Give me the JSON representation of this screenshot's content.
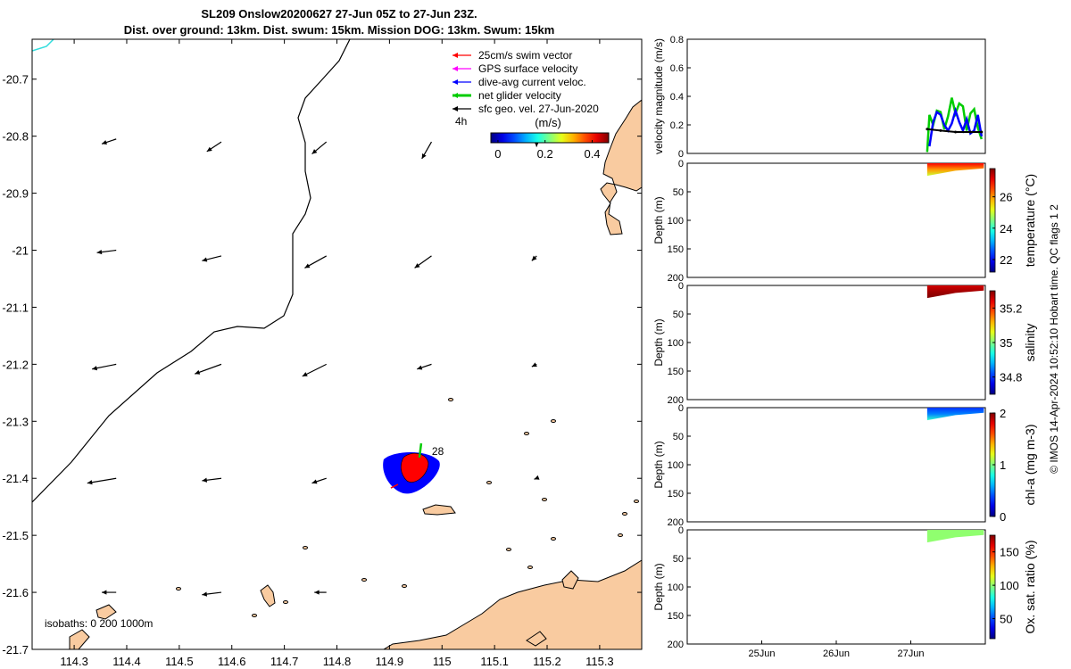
{
  "title": {
    "line1": "SL209 Onslow20200627 27-Jun 05Z to 27-Jun 23Z.",
    "line2": "Dist. over ground: 13km. Dist. swum: 15km. Mission DOG: 13km. Swum: 15km"
  },
  "footer": "© IMOS 14-Apr-2024 10:52:10 Hobart time. QC flags 1  2",
  "colors": {
    "land": "#f9cba0",
    "swim": "#ff0000",
    "gps": "#ff00ff",
    "dive_avg": "#0000ff",
    "net": "#00cc00",
    "sfc": "#000000",
    "contour": "#000000",
    "cyan_contour": "#33dddd"
  },
  "chart_data": [
    {
      "type": "map",
      "xlim": [
        114.22,
        115.38
      ],
      "ylim": [
        -21.7,
        -20.63
      ],
      "xticks": [
        "114.3",
        "114.4",
        "114.5",
        "114.6",
        "114.7",
        "114.8",
        "114.9",
        "115",
        "115.1",
        "115.2",
        "115.3"
      ],
      "xtick_values": [
        114.3,
        114.4,
        114.5,
        114.6,
        114.7,
        114.8,
        114.9,
        115.0,
        115.1,
        115.2,
        115.3
      ],
      "yticks": [
        "-20.7",
        "-20.8",
        "-20.9",
        "-21",
        "-21.1",
        "-21.2",
        "-21.3",
        "-21.4",
        "-21.5",
        "-21.6",
        "-21.7"
      ],
      "ytick_values": [
        -20.7,
        -20.8,
        -20.9,
        -21.0,
        -21.1,
        -21.2,
        -21.3,
        -21.4,
        -21.5,
        -21.6,
        -21.7
      ],
      "legend": [
        {
          "label": "25cm/s swim vector",
          "color": "#ff0000"
        },
        {
          "label": "GPS surface velocity",
          "color": "#ff00ff"
        },
        {
          "label": "dive-avg current veloc.",
          "color": "#0000ff"
        },
        {
          "label": "net glider velocity",
          "color": "#00cc00"
        },
        {
          "label": "sfc geo. vel. 27-Jun-2020",
          "color": "#000000"
        }
      ],
      "legend_placement": "top-right",
      "colorbar": {
        "label": "(m/s)",
        "ticks": [
          "0",
          "0.2",
          "0.4"
        ],
        "tick_values": [
          0,
          0.2,
          0.4
        ],
        "range": [
          -0.03,
          0.47
        ]
      },
      "time_step_label": "4h",
      "isobath_label": "isobaths: 0   200   1000m",
      "track_label": "28",
      "track_center": [
        114.94,
        -21.37
      ],
      "current_vectors": [
        {
          "lon": 114.38,
          "lat": -20.805,
          "u": 0.03,
          "v": 0.01
        },
        {
          "lon": 114.58,
          "lat": -20.81,
          "u": 0.03,
          "v": 0.02
        },
        {
          "lon": 114.78,
          "lat": -20.81,
          "u": 0.03,
          "v": 0.025
        },
        {
          "lon": 114.98,
          "lat": -20.81,
          "u": 0.02,
          "v": 0.035
        },
        {
          "lon": 115.18,
          "lat": -20.81,
          "u": 0.0,
          "v": 0.01
        },
        {
          "lon": 114.38,
          "lat": -21.0,
          "u": 0.04,
          "v": 0.005
        },
        {
          "lon": 114.58,
          "lat": -21.01,
          "u": 0.04,
          "v": 0.01
        },
        {
          "lon": 114.78,
          "lat": -21.01,
          "u": 0.045,
          "v": 0.025
        },
        {
          "lon": 114.98,
          "lat": -21.01,
          "u": 0.035,
          "v": 0.025
        },
        {
          "lon": 115.18,
          "lat": -21.01,
          "u": 0.01,
          "v": 0.01
        },
        {
          "lon": 114.38,
          "lat": -21.2,
          "u": 0.05,
          "v": 0.01
        },
        {
          "lon": 114.58,
          "lat": -21.2,
          "u": 0.055,
          "v": 0.02
        },
        {
          "lon": 114.78,
          "lat": -21.2,
          "u": 0.05,
          "v": 0.025
        },
        {
          "lon": 114.98,
          "lat": -21.2,
          "u": 0.03,
          "v": 0.01
        },
        {
          "lon": 115.18,
          "lat": -21.2,
          "u": 0.01,
          "v": 0.005
        },
        {
          "lon": 114.38,
          "lat": -21.4,
          "u": 0.06,
          "v": 0.01
        },
        {
          "lon": 114.58,
          "lat": -21.4,
          "u": 0.04,
          "v": 0.005
        },
        {
          "lon": 114.78,
          "lat": -21.4,
          "u": 0.03,
          "v": 0.01
        },
        {
          "lon": 114.98,
          "lat": -21.4,
          "u": 0.015,
          "v": 0.01
        },
        {
          "lon": 115.18,
          "lat": -21.4,
          "u": 0.005,
          "v": 0.002
        },
        {
          "lon": 114.38,
          "lat": -21.6,
          "u": 0.03,
          "v": 0.0
        },
        {
          "lon": 114.58,
          "lat": -21.6,
          "u": 0.04,
          "v": 0.005
        },
        {
          "lon": 114.78,
          "lat": -21.6,
          "u": 0.025,
          "v": 0.0
        }
      ]
    },
    {
      "type": "line",
      "ylabel": "velocity magnitude (m/s)",
      "ylim": [
        0,
        0.8
      ],
      "yticks": [
        "0",
        "0.2",
        "0.4",
        "0.6",
        "0.8"
      ],
      "ytick_values": [
        0,
        0.2,
        0.4,
        0.6,
        0.8
      ],
      "xlim": [
        "24-Jun 00Z",
        "28-Jun 00Z"
      ],
      "series": [
        {
          "color": "#00cc00",
          "x": [
            27.22,
            27.25,
            27.3,
            27.35,
            27.4,
            27.45,
            27.5,
            27.55,
            27.6,
            27.65,
            27.7,
            27.75,
            27.8,
            27.85,
            27.9,
            27.95
          ],
          "y": [
            0.01,
            0.27,
            0.2,
            0.3,
            0.29,
            0.17,
            0.26,
            0.39,
            0.28,
            0.35,
            0.33,
            0.16,
            0.28,
            0.31,
            0.18,
            0.1
          ]
        },
        {
          "color": "#0000ff",
          "x": [
            27.25,
            27.3,
            27.35,
            27.4,
            27.45,
            27.5,
            27.55,
            27.6,
            27.65,
            27.7,
            27.75,
            27.8,
            27.85,
            27.9,
            27.95
          ],
          "y": [
            0.05,
            0.22,
            0.29,
            0.27,
            0.2,
            0.16,
            0.21,
            0.3,
            0.22,
            0.16,
            0.24,
            0.14,
            0.16,
            0.27,
            0.12
          ]
        },
        {
          "color": "#000000",
          "x": [
            27.22,
            27.4,
            27.6,
            27.8,
            27.95
          ],
          "y": [
            0.17,
            0.16,
            0.15,
            0.15,
            0.15
          ]
        }
      ]
    },
    {
      "type": "heatmap",
      "ylabel": "Depth (m)",
      "ylim": [
        0,
        200
      ],
      "yticks": [
        "0",
        "50",
        "100",
        "150",
        "200"
      ],
      "ytick_values": [
        0,
        50,
        100,
        150,
        200
      ],
      "variable": "temperature (°C)",
      "colorbar_ticks": [
        "22",
        "24",
        "26"
      ],
      "colorbar_tick_values": [
        22,
        24,
        26
      ],
      "colorbar_range": [
        21.2,
        27.8
      ],
      "profile_depth": [
        0,
        12,
        22
      ],
      "values_top_bottom": [
        27.0,
        26.0,
        25.0
      ]
    },
    {
      "type": "heatmap",
      "ylabel": "Depth (m)",
      "ylim": [
        0,
        200
      ],
      "yticks": [
        "0",
        "50",
        "100",
        "150",
        "200"
      ],
      "ytick_values": [
        0,
        50,
        100,
        150,
        200
      ],
      "variable": "salinity",
      "colorbar_ticks": [
        "34.8",
        "35",
        "35.2"
      ],
      "colorbar_tick_values": [
        34.8,
        35.0,
        35.2
      ],
      "colorbar_range": [
        34.7,
        35.3
      ],
      "profile_depth": [
        0,
        12,
        22
      ],
      "values_top_bottom": [
        35.25,
        35.28,
        35.3
      ]
    },
    {
      "type": "heatmap",
      "ylabel": "Depth (m)",
      "ylim": [
        0,
        200
      ],
      "yticks": [
        "0",
        "50",
        "100",
        "150",
        "200"
      ],
      "ytick_values": [
        0,
        50,
        100,
        150,
        200
      ],
      "variable": "chl-a (mg m-3)",
      "colorbar_ticks": [
        "0",
        "1",
        "2"
      ],
      "colorbar_tick_values": [
        0,
        1,
        2
      ],
      "colorbar_range": [
        0,
        2
      ],
      "profile_depth": [
        0,
        12,
        22
      ],
      "values_top_bottom": [
        0.35,
        0.5,
        0.85
      ]
    },
    {
      "type": "heatmap",
      "ylabel": "Depth (m)",
      "ylim": [
        0,
        200
      ],
      "yticks": [
        "0",
        "50",
        "100",
        "150",
        "200"
      ],
      "ytick_values": [
        0,
        50,
        100,
        150,
        200
      ],
      "xticks": [
        "25Jun",
        "26Jun",
        "27Jun"
      ],
      "xtick_values": [
        25,
        26,
        27
      ],
      "variable": "Ox. sat. ratio (%)",
      "colorbar_ticks": [
        "50",
        "100",
        "150"
      ],
      "colorbar_tick_values": [
        50,
        100,
        150
      ],
      "colorbar_range": [
        20,
        175
      ],
      "profile_depth": [
        0,
        12,
        22
      ],
      "values_top_bottom": [
        100,
        100,
        100
      ]
    }
  ]
}
